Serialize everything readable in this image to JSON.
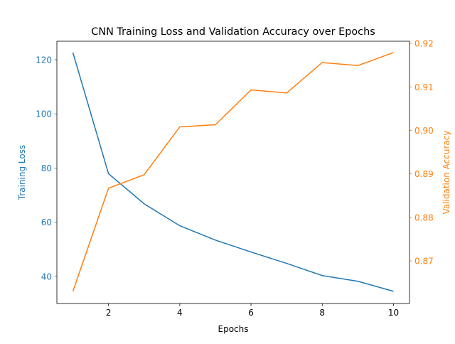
{
  "chart_data": {
    "type": "line",
    "title": "CNN Training Loss and Validation Accuracy over Epochs",
    "xlabel": "Epochs",
    "ylabel_left": "Training Loss",
    "ylabel_right": "Validation Accuracy",
    "x": [
      1,
      2,
      3,
      4,
      5,
      6,
      7,
      8,
      9,
      10
    ],
    "xlim": [
      0.55,
      10.45
    ],
    "xticks": [
      2,
      4,
      6,
      8,
      10
    ],
    "ylim_left": [
      30.0,
      126.8
    ],
    "yticks_left": [
      40,
      60,
      80,
      100,
      120
    ],
    "ylim_right": [
      0.8602,
      0.9205
    ],
    "yticks_right": [
      0.87,
      0.88,
      0.89,
      0.9,
      0.91,
      0.92
    ],
    "yticklabels_right": [
      "0.87",
      "0.88",
      "0.89",
      "0.90",
      "0.91",
      "0.92"
    ],
    "grid": false,
    "series": [
      {
        "axis": "left",
        "color": "#1f77b4",
        "values": [
          122.6,
          77.9,
          66.8,
          58.7,
          53.4,
          49.0,
          44.8,
          40.3,
          38.2,
          34.5
        ]
      },
      {
        "axis": "right",
        "color": "#ff7f0e",
        "values": [
          0.863,
          0.8867,
          0.8898,
          0.9008,
          0.9013,
          0.9093,
          0.9086,
          0.9156,
          0.9149,
          0.9179
        ]
      }
    ]
  }
}
